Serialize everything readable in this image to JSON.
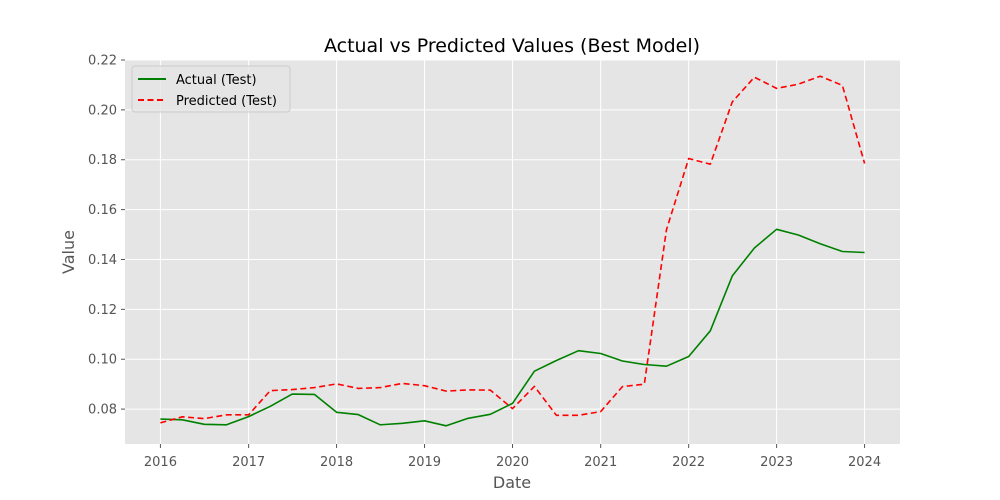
{
  "chart_data": {
    "type": "line",
    "title": "Actual vs Predicted Values (Best Model)",
    "xlabel": "Date",
    "ylabel": "Value",
    "x": [
      "2016-01-01",
      "2016-04-01",
      "2016-07-01",
      "2016-10-01",
      "2017-01-01",
      "2017-04-01",
      "2017-07-01",
      "2017-10-01",
      "2018-01-01",
      "2018-04-01",
      "2018-07-01",
      "2018-10-01",
      "2019-01-01",
      "2019-04-01",
      "2019-07-01",
      "2019-10-01",
      "2020-01-01",
      "2020-04-01",
      "2020-07-01",
      "2020-10-01",
      "2021-01-01",
      "2021-04-01",
      "2021-07-01",
      "2021-10-01",
      "2022-01-01",
      "2022-04-01",
      "2022-07-01",
      "2022-10-01",
      "2023-01-01",
      "2023-04-01",
      "2023-07-01",
      "2023-10-01",
      "2024-01-01"
    ],
    "xlim": [
      "2015-08-07",
      "2024-05-27"
    ],
    "ylim": [
      0.066,
      0.22
    ],
    "x_ticks": [
      "2016",
      "2017",
      "2018",
      "2019",
      "2020",
      "2021",
      "2022",
      "2023",
      "2024"
    ],
    "y_ticks": [
      "0.08",
      "0.10",
      "0.12",
      "0.14",
      "0.16",
      "0.18",
      "0.20",
      "0.22"
    ],
    "grid": true,
    "legend_position": "top-left",
    "series": [
      {
        "name": "Actual (Test)",
        "color": "#008000",
        "style": "solid",
        "values": [
          0.076,
          0.0757,
          0.0739,
          0.0737,
          0.077,
          0.0811,
          0.086,
          0.0859,
          0.0787,
          0.0778,
          0.0737,
          0.0743,
          0.0753,
          0.0733,
          0.0763,
          0.0779,
          0.0823,
          0.0952,
          0.0995,
          0.1034,
          0.1023,
          0.0993,
          0.0979,
          0.0972,
          0.1011,
          0.1114,
          0.1334,
          0.1446,
          0.1521,
          0.1498,
          0.1463,
          0.1432,
          0.1428
        ]
      },
      {
        "name": "Predicted (Test)",
        "color": "#ff0000",
        "style": "dashed",
        "values": [
          0.0745,
          0.0769,
          0.0762,
          0.0777,
          0.0777,
          0.0874,
          0.0878,
          0.0886,
          0.0901,
          0.0883,
          0.0886,
          0.0903,
          0.0894,
          0.0872,
          0.0877,
          0.0876,
          0.0802,
          0.0891,
          0.0775,
          0.0775,
          0.079,
          0.089,
          0.09,
          0.152,
          0.1805,
          0.1782,
          0.2032,
          0.2131,
          0.2086,
          0.2103,
          0.2135,
          0.2098,
          0.1785
        ]
      }
    ]
  }
}
